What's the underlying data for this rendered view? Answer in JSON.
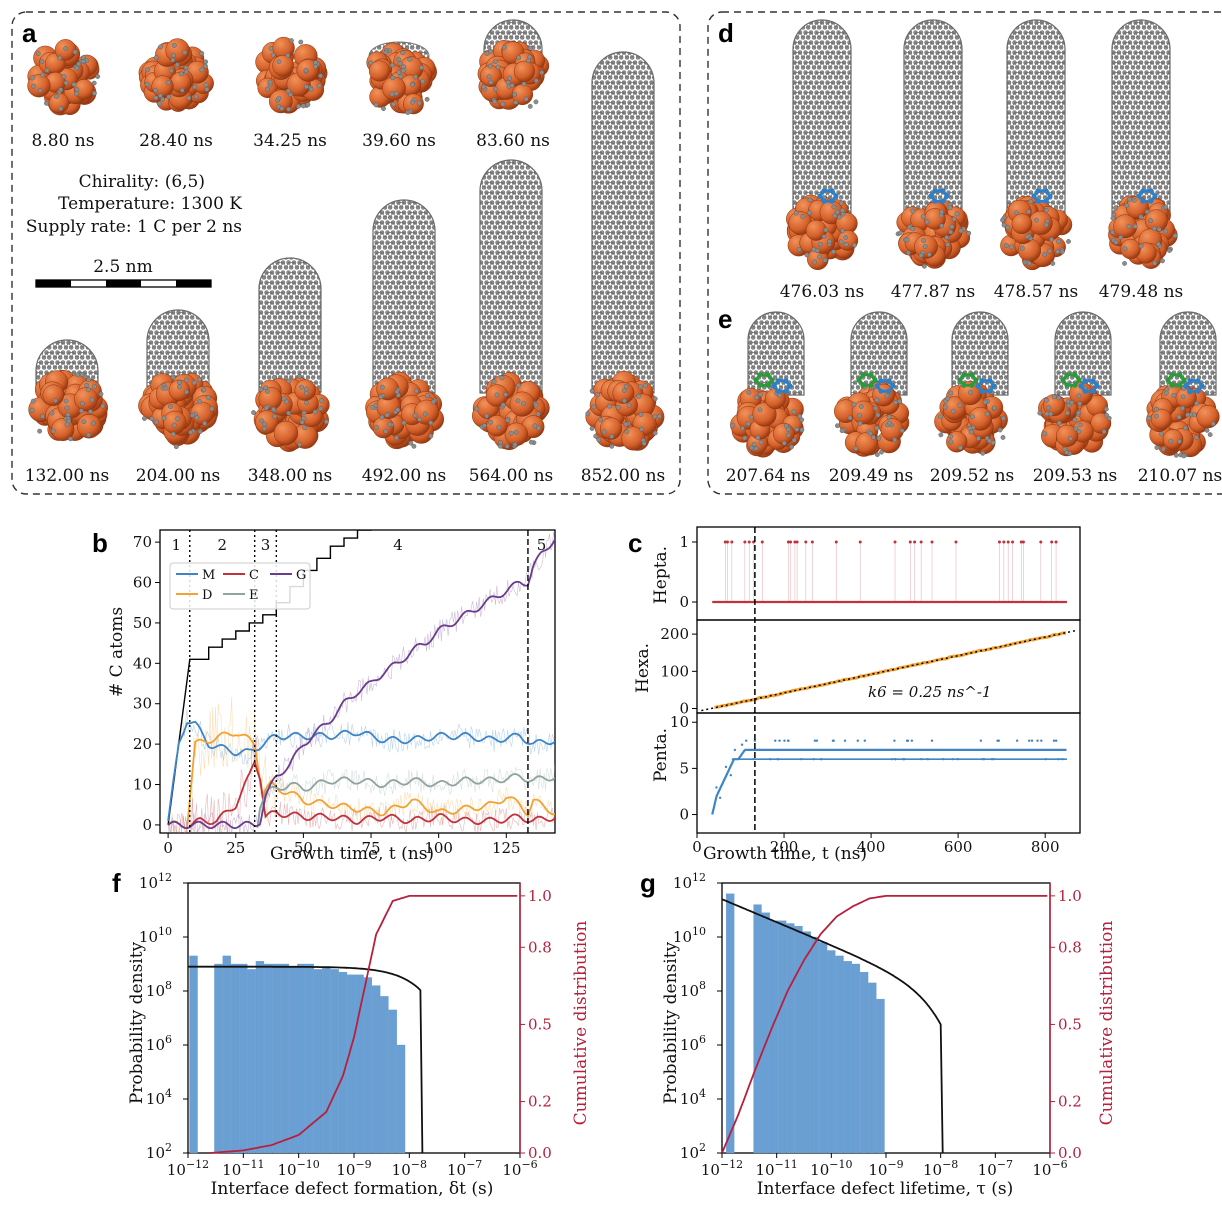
{
  "panel_labels": {
    "a": "a",
    "b": "b",
    "c": "c",
    "d": "d",
    "e": "e",
    "f": "f",
    "g": "g"
  },
  "colors": {
    "iron": "#d4602a",
    "carbon": "#8c8c8c",
    "pentagon": "#2d7fc8",
    "heptagon": "#2b9a3c",
    "M": "#3d85c6",
    "D": "#f2a233",
    "C": "#c0323c",
    "E": "#8fa3a0",
    "G": "#6b3c8c",
    "hist": "#6a9fd4",
    "fit": "#111111",
    "cdf": "#b81f3c"
  },
  "panel_a": {
    "top_times": [
      "8.80 ns",
      "28.40 ns",
      "34.25 ns",
      "39.60 ns",
      "83.60 ns"
    ],
    "bottom_times": [
      "132.00 ns",
      "204.00 ns",
      "348.00 ns",
      "492.00 ns",
      "564.00 ns",
      "852.00 ns"
    ],
    "info": {
      "chirality": "Chirality: (6,5)",
      "temperature": "Temperature: 1300 K",
      "supply": "Supply rate: 1 C per 2 ns"
    },
    "scalebar": "2.5 nm"
  },
  "panel_d": {
    "times": [
      "476.03 ns",
      "477.87 ns",
      "478.57 ns",
      "479.48 ns"
    ]
  },
  "panel_e": {
    "times": [
      "207.64 ns",
      "209.49 ns",
      "209.52 ns",
      "209.53 ns",
      "210.07 ns"
    ]
  },
  "chart_data": [
    {
      "id": "b",
      "type": "line",
      "xlabel": "Growth time, t (ns)",
      "ylabel": "# C atoms",
      "xlim": [
        -3,
        143
      ],
      "ylim": [
        -2,
        73
      ],
      "xticks": [
        0,
        25,
        50,
        75,
        100,
        125
      ],
      "yticks": [
        0,
        10,
        20,
        30,
        40,
        50,
        60,
        70
      ],
      "regions": [
        {
          "label": "1",
          "x": 3
        },
        {
          "label": "2",
          "x": 20
        },
        {
          "label": "3",
          "x": 36
        },
        {
          "label": "4",
          "x": 85
        },
        {
          "label": "5",
          "x": 138
        }
      ],
      "region_boundaries": [
        8,
        32,
        40,
        133
      ],
      "legend": {
        "position": "upper-left",
        "entries": [
          "M",
          "D",
          "C",
          "E",
          "G"
        ]
      },
      "series": [
        {
          "name": "",
          "color": "black",
          "x": [
            0,
            8,
            8,
            15,
            20,
            25,
            30,
            35,
            40,
            45,
            50,
            55,
            60,
            65,
            70,
            75
          ],
          "y": [
            0,
            41,
            41,
            44,
            46,
            48,
            50,
            52,
            55,
            59,
            63,
            66,
            69,
            71,
            73,
            75
          ]
        },
        {
          "name": "M",
          "x": [
            0,
            4,
            7,
            10,
            15,
            20,
            25,
            30,
            35,
            40,
            50,
            60,
            70,
            80,
            90,
            100,
            110,
            120,
            130,
            135,
            143
          ],
          "y": [
            1,
            20,
            26,
            25,
            20,
            19,
            18,
            18,
            20,
            22,
            22,
            22,
            23,
            21,
            21,
            22,
            22,
            21,
            22,
            20,
            21
          ]
        },
        {
          "name": "D",
          "x": [
            0,
            4,
            7,
            10,
            15,
            20,
            25,
            30,
            32,
            35,
            38,
            40,
            45,
            50,
            60,
            70,
            80,
            90,
            100,
            110,
            120,
            125,
            130,
            133,
            135,
            143
          ],
          "y": [
            0,
            0,
            0,
            20,
            21,
            22,
            23,
            21,
            20,
            8,
            10,
            9,
            8,
            6,
            5,
            4,
            3,
            6,
            3,
            4,
            5,
            7,
            5,
            3,
            6,
            3
          ]
        },
        {
          "name": "C",
          "x": [
            0,
            8,
            12,
            18,
            25,
            30,
            32,
            34,
            36,
            40,
            50,
            60,
            70,
            80,
            90,
            100,
            110,
            120,
            130,
            135,
            143
          ],
          "y": [
            0,
            0,
            1,
            1,
            5,
            12,
            16,
            12,
            2,
            3,
            2,
            2,
            1,
            2,
            1,
            2,
            1,
            1,
            2,
            1,
            2
          ]
        },
        {
          "name": "E",
          "x": [
            33,
            34,
            36,
            40,
            45,
            50,
            60,
            70,
            80,
            90,
            100,
            110,
            120,
            130,
            135,
            143
          ],
          "y": [
            0,
            5,
            8,
            9,
            10,
            9,
            11,
            11,
            10,
            11,
            10,
            11,
            11,
            12,
            11,
            12
          ]
        },
        {
          "name": "G",
          "x": [
            0,
            30,
            32,
            34,
            36,
            40,
            45,
            50,
            55,
            60,
            65,
            70,
            75,
            80,
            85,
            90,
            95,
            100,
            105,
            110,
            115,
            120,
            125,
            130,
            133,
            135,
            138,
            143
          ],
          "y": [
            0,
            0,
            0,
            1,
            7,
            12,
            15,
            20,
            23,
            26,
            30,
            33,
            35,
            38,
            40,
            43,
            45,
            48,
            50,
            52,
            54,
            56,
            58,
            60,
            60,
            64,
            67,
            71
          ]
        }
      ]
    },
    {
      "id": "c",
      "type": "scatter",
      "xlabel": "Growth time, t (ns)",
      "xlim": [
        0,
        880
      ],
      "xticks": [
        0,
        200,
        400,
        600,
        800
      ],
      "dashed_x": 133,
      "subplots": [
        {
          "ylabel": "Hepta.",
          "ylim": [
            -0.3,
            1.25
          ],
          "yticks": [
            0,
            1
          ],
          "event_times": [
            65,
            70,
            80,
            110,
            120,
            130,
            150,
            210,
            215,
            225,
            230,
            250,
            265,
            320,
            375,
            455,
            490,
            500,
            515,
            540,
            595,
            695,
            705,
            715,
            725,
            745,
            750,
            790,
            815,
            825
          ]
        },
        {
          "ylabel": "Hexa.",
          "ylim": [
            -12,
            238
          ],
          "yticks": [
            0,
            100,
            200
          ],
          "annotation": "k6 = 0.25 ns^-1",
          "fit": {
            "slope": 0.25,
            "intercept": -8
          },
          "x": [
            30,
            850
          ]
        },
        {
          "ylabel": "Penta.",
          "ylim": [
            -2,
            11
          ],
          "yticks": [
            0,
            5,
            10
          ],
          "x": [
            35,
            45,
            55,
            65,
            75,
            85,
            95,
            110,
            130,
            150,
            200,
            400,
            600,
            800,
            850
          ],
          "y": [
            0,
            2,
            3,
            4,
            5,
            6,
            6,
            7,
            7,
            7,
            7,
            7,
            7,
            7,
            7
          ]
        }
      ]
    },
    {
      "id": "f",
      "type": "bar",
      "xlabel": "Interface defect formation, δt (s)",
      "ylabel": "Probability density",
      "y2label": "Cumulative distribution",
      "xscale": "log",
      "yscale": "log",
      "xlim_exp": [
        -12,
        -6
      ],
      "ylim_exp": [
        2,
        12
      ],
      "y2lim": [
        0,
        1.05
      ],
      "y2ticks": [
        0.0,
        0.2,
        0.5,
        0.8,
        1.0
      ],
      "bins_log10_x": [
        -11.9,
        -11.6,
        -11.45,
        -11.3,
        -11.15,
        -11.0,
        -10.85,
        -10.7,
        -10.55,
        -10.4,
        -10.25,
        -10.1,
        -9.95,
        -9.8,
        -9.65,
        -9.5,
        -9.35,
        -9.2,
        -9.05,
        -8.9,
        -8.75,
        -8.6,
        -8.45,
        -8.3,
        -8.15
      ],
      "bins_log10_y": [
        9.3,
        0,
        9.0,
        9.3,
        9.0,
        9.0,
        8.8,
        9.1,
        9.0,
        9.0,
        9.0,
        8.9,
        9.0,
        9.0,
        8.8,
        8.9,
        8.8,
        8.7,
        8.6,
        8.6,
        8.5,
        8.2,
        7.8,
        7.3,
        6.0
      ],
      "fit": {
        "plateau_log10": 8.9,
        "cutoff_log10": -7.8
      },
      "cdf": {
        "log10_x": [
          -11.6,
          -11,
          -10.5,
          -10,
          -9.5,
          -9.2,
          -9,
          -8.8,
          -8.6,
          -8.3,
          -8.0,
          -7.8,
          -7.5,
          -6
        ],
        "y": [
          0,
          0.01,
          0.03,
          0.07,
          0.16,
          0.3,
          0.45,
          0.65,
          0.85,
          0.98,
          1.0,
          1.0,
          1.0,
          1.0
        ]
      }
    },
    {
      "id": "g",
      "type": "bar",
      "xlabel": "Interface defect lifetime, τ (s)",
      "ylabel": "Probability density",
      "y2label": "Cumulative distribution",
      "xscale": "log",
      "yscale": "log",
      "xlim_exp": [
        -12,
        -6
      ],
      "ylim_exp": [
        2,
        12
      ],
      "y2lim": [
        0,
        1.05
      ],
      "y2ticks": [
        0.0,
        0.2,
        0.5,
        0.8,
        1.0
      ],
      "bins_log10_x": [
        -11.85,
        -11.5,
        -11.35,
        -11.2,
        -11.05,
        -10.9,
        -10.75,
        -10.6,
        -10.45,
        -10.3,
        -10.15,
        -10.0,
        -9.85,
        -9.7,
        -9.55,
        -9.4,
        -9.25,
        -9.1
      ],
      "bins_log10_y": [
        11.6,
        0,
        11.2,
        10.9,
        10.6,
        10.6,
        10.5,
        10.4,
        10.2,
        10.0,
        9.8,
        9.5,
        9.3,
        9.1,
        9.0,
        8.7,
        8.3,
        7.7
      ],
      "fit": {
        "start_log10": 11.4,
        "cutoff_log10": -8.0
      },
      "cdf": {
        "log10_x": [
          -12,
          -11.7,
          -11.4,
          -11.1,
          -10.8,
          -10.5,
          -10.2,
          -9.9,
          -9.6,
          -9.3,
          -9,
          -8.7,
          -8.4,
          -6
        ],
        "y": [
          0,
          0.15,
          0.32,
          0.48,
          0.63,
          0.75,
          0.85,
          0.92,
          0.96,
          0.99,
          1.0,
          1.0,
          1.0,
          1.0
        ]
      }
    }
  ]
}
